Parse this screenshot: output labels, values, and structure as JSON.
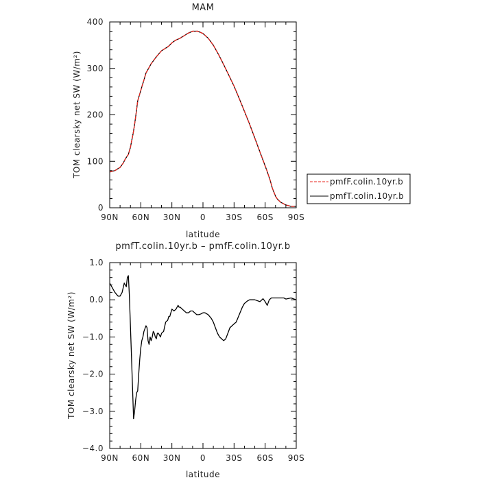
{
  "chart_data": [
    {
      "type": "line",
      "title": "MAM",
      "xlabel": "latitude",
      "ylabel": "TOM clearsky net SW (W/m²)",
      "x_tick_values": [
        90,
        60,
        30,
        0,
        -30,
        -60,
        -90
      ],
      "x_tick_labels": [
        "90N",
        "60N",
        "30N",
        "0",
        "30S",
        "60S",
        "90S"
      ],
      "xlim": [
        90,
        -90
      ],
      "ylim": [
        0,
        400
      ],
      "y_tick_values": [
        0,
        100,
        200,
        300,
        400
      ],
      "y_tick_labels": [
        "0",
        "100",
        "200",
        "300",
        "400"
      ],
      "grid": false,
      "legend_placement": "right",
      "legend_entries": [
        {
          "label": "pmfF.colin.10yr.b",
          "color": "#e8261f",
          "dash": "dashed"
        },
        {
          "label": "pmfT.colin.10yr.b",
          "color": "#000000",
          "dash": "solid"
        }
      ],
      "series": [
        {
          "name": "pmfF.colin.10yr.b",
          "color": "#e8261f",
          "dash": "dashed",
          "x": [
            90,
            85,
            80,
            77,
            75,
            72,
            70,
            67,
            65,
            63,
            61,
            59,
            57,
            55,
            52,
            50,
            45,
            40,
            35,
            33,
            30,
            27,
            25,
            22,
            20,
            17,
            15,
            12,
            10,
            7,
            5,
            0,
            -5,
            -10,
            -15,
            -20,
            -25,
            -30,
            -35,
            -40,
            -45,
            -50,
            -55,
            -60,
            -62,
            -65,
            -67,
            -70,
            -72,
            -75,
            -80,
            -85,
            -90
          ],
          "y": [
            77,
            80,
            87,
            96,
            105,
            115,
            130,
            165,
            195,
            230,
            245,
            260,
            275,
            290,
            302,
            310,
            325,
            338,
            345,
            348,
            355,
            360,
            362,
            365,
            368,
            372,
            375,
            378,
            380,
            380,
            380,
            375,
            365,
            350,
            330,
            308,
            285,
            262,
            235,
            208,
            180,
            150,
            120,
            90,
            78,
            58,
            42,
            25,
            18,
            12,
            6,
            3,
            3
          ]
        },
        {
          "name": "pmfT.colin.10yr.b",
          "color": "#000000",
          "dash": "solid",
          "x": [
            90,
            85,
            80,
            77,
            75,
            72,
            70,
            67,
            65,
            63,
            61,
            59,
            57,
            55,
            52,
            50,
            45,
            40,
            35,
            33,
            30,
            27,
            25,
            22,
            20,
            17,
            15,
            12,
            10,
            7,
            5,
            0,
            -5,
            -10,
            -15,
            -20,
            -25,
            -30,
            -35,
            -40,
            -45,
            -50,
            -55,
            -60,
            -62,
            -65,
            -67,
            -70,
            -72,
            -75,
            -80,
            -85,
            -90
          ],
          "y": [
            77,
            80,
            87,
            96,
            105,
            115,
            130,
            165,
            195,
            230,
            245,
            260,
            275,
            290,
            302,
            310,
            325,
            338,
            345,
            348,
            355,
            360,
            362,
            365,
            368,
            372,
            375,
            378,
            380,
            380,
            380,
            375,
            365,
            350,
            330,
            308,
            285,
            262,
            235,
            208,
            180,
            150,
            120,
            90,
            78,
            58,
            42,
            25,
            18,
            12,
            6,
            3,
            3
          ]
        }
      ]
    },
    {
      "type": "line",
      "title": "pmfT.colin.10yr.b – pmfF.colin.10yr.b",
      "xlabel": "latitude",
      "ylabel": "TOM clearsky net SW (W/m²)",
      "x_tick_values": [
        90,
        60,
        30,
        0,
        -30,
        -60,
        -90
      ],
      "x_tick_labels": [
        "90N",
        "60N",
        "30N",
        "0",
        "30S",
        "60S",
        "90S"
      ],
      "xlim": [
        90,
        -90
      ],
      "ylim": [
        -4,
        1
      ],
      "y_tick_values": [
        1,
        0,
        -1,
        -2,
        -3,
        -4
      ],
      "y_tick_labels": [
        "1.0",
        "0.0",
        "−1.0",
        "−2.0",
        "−3.0",
        "−4.0"
      ],
      "grid": false,
      "series": [
        {
          "color": "#000000",
          "dash": "solid",
          "x": [
            90,
            87,
            85,
            82,
            80,
            78,
            76,
            74,
            73,
            72,
            71,
            69,
            67,
            66,
            65,
            64,
            63,
            62,
            61,
            60,
            59,
            58,
            57,
            55,
            54,
            53,
            52,
            51,
            50,
            49,
            48,
            47,
            46,
            45,
            44,
            43,
            42,
            41,
            40,
            38,
            36,
            34,
            33,
            32,
            30,
            28,
            26,
            25,
            24,
            23,
            22,
            20,
            18,
            16,
            14,
            12,
            10,
            8,
            6,
            4,
            2,
            0,
            -2,
            -5,
            -8,
            -10,
            -12,
            -14,
            -16,
            -18,
            -20,
            -22,
            -24,
            -26,
            -28,
            -30,
            -32,
            -35,
            -38,
            -40,
            -43,
            -45,
            -50,
            -55,
            -58,
            -60,
            -62,
            -64,
            -66,
            -68,
            -70,
            -72,
            -75,
            -78,
            -80,
            -85,
            -90
          ],
          "y": [
            0.45,
            0.3,
            0.2,
            0.1,
            0.1,
            0.2,
            0.45,
            0.35,
            0.6,
            0.65,
            0.1,
            -1.5,
            -3.2,
            -3.0,
            -2.7,
            -2.5,
            -2.45,
            -2.0,
            -1.6,
            -1.3,
            -1.1,
            -1.0,
            -0.85,
            -0.7,
            -0.75,
            -1.1,
            -1.2,
            -1.0,
            -1.1,
            -1.0,
            -0.85,
            -0.9,
            -1.0,
            -1.05,
            -0.9,
            -0.9,
            -0.95,
            -1.0,
            -0.9,
            -0.85,
            -0.6,
            -0.55,
            -0.45,
            -0.45,
            -0.25,
            -0.3,
            -0.25,
            -0.2,
            -0.15,
            -0.2,
            -0.2,
            -0.25,
            -0.3,
            -0.35,
            -0.35,
            -0.3,
            -0.3,
            -0.35,
            -0.4,
            -0.4,
            -0.38,
            -0.35,
            -0.35,
            -0.4,
            -0.5,
            -0.6,
            -0.75,
            -0.9,
            -1.0,
            -1.05,
            -1.1,
            -1.05,
            -0.9,
            -0.75,
            -0.7,
            -0.65,
            -0.6,
            -0.4,
            -0.2,
            -0.1,
            -0.03,
            0,
            0,
            -0.05,
            0.03,
            -0.05,
            -0.15,
            0,
            0.05,
            0.05,
            0.05,
            0.05,
            0.05,
            0.05,
            0.02,
            0.05,
            0
          ]
        }
      ]
    }
  ]
}
